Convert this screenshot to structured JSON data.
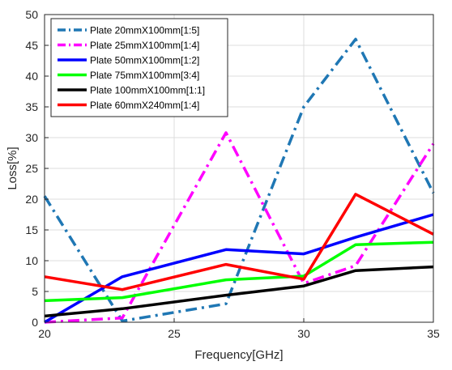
{
  "chart_data": {
    "type": "line",
    "title": "",
    "xlabel": "Frequency[GHz]",
    "ylabel": "Loss[%]",
    "xlim": [
      20,
      35
    ],
    "ylim": [
      0,
      50
    ],
    "xticks": [
      20,
      25,
      30,
      35
    ],
    "yticks": [
      0,
      5,
      10,
      15,
      20,
      25,
      30,
      35,
      40,
      45,
      50
    ],
    "grid": true,
    "legend_position": "top-left",
    "series": [
      {
        "name": "Plate 20mmX100mm[1:5]",
        "color": "#1f77b4",
        "style": "dashdot",
        "x": [
          20,
          23,
          27,
          30,
          32,
          35
        ],
        "y": [
          20.5,
          0.2,
          3.0,
          35.0,
          46.0,
          21.0
        ]
      },
      {
        "name": "Plate 25mmX100mm[1:4]",
        "color": "#ff00ff",
        "style": "dashdot",
        "x": [
          20,
          23,
          27,
          30,
          32,
          35
        ],
        "y": [
          0.0,
          0.7,
          30.8,
          6.3,
          9.2,
          29.0
        ]
      },
      {
        "name": "Plate 50mmX100mm[1:2]",
        "color": "#0000ff",
        "style": "solid",
        "x": [
          20,
          23,
          27,
          30,
          32,
          35
        ],
        "y": [
          0.0,
          7.4,
          11.8,
          11.1,
          13.8,
          17.5
        ]
      },
      {
        "name": "Plate 75mmX100mm[3:4]",
        "color": "#00ff00",
        "style": "solid",
        "x": [
          20,
          23,
          27,
          30,
          32,
          35
        ],
        "y": [
          3.5,
          4.0,
          6.9,
          7.5,
          12.6,
          13.0
        ]
      },
      {
        "name": "Plate 100mmX100mm[1:1]",
        "color": "#000000",
        "style": "solid",
        "x": [
          20,
          23,
          27,
          30,
          32,
          35
        ],
        "y": [
          1.0,
          2.2,
          4.4,
          5.9,
          8.4,
          9.0
        ]
      },
      {
        "name": "Plate 60mmX240mm[1:4]",
        "color": "#ff0000",
        "style": "solid",
        "x": [
          20,
          23,
          27,
          30,
          32,
          35
        ],
        "y": [
          7.4,
          5.3,
          9.4,
          7.0,
          20.8,
          14.3
        ]
      }
    ]
  }
}
